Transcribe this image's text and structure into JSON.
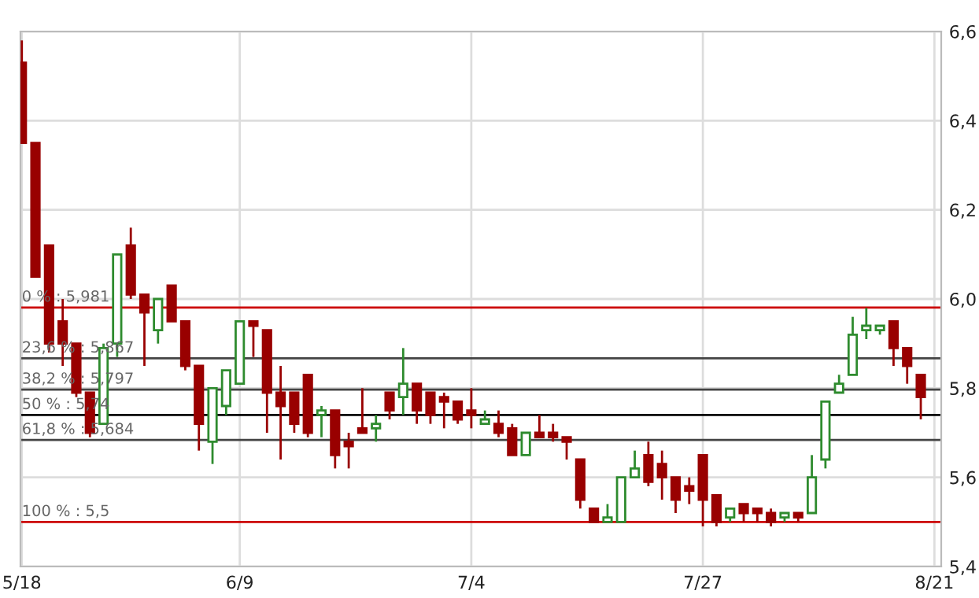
{
  "chart_data": {
    "type": "candlestick",
    "categories": [
      "5/18",
      null,
      null,
      null,
      null,
      null,
      null,
      null,
      null,
      null,
      null,
      null,
      null,
      null,
      null,
      null,
      "6/9",
      null,
      null,
      null,
      null,
      null,
      null,
      null,
      null,
      null,
      null,
      null,
      null,
      null,
      null,
      null,
      null,
      "7/4",
      null,
      null,
      null,
      null,
      null,
      null,
      null,
      null,
      null,
      null,
      null,
      null,
      null,
      null,
      null,
      null,
      "7/27",
      null,
      null,
      null,
      null,
      null,
      null,
      null,
      null,
      null,
      null,
      null,
      null,
      null,
      null,
      null,
      null,
      "8/21"
    ],
    "ohlc": [
      [
        6.53,
        6.58,
        6.35,
        6.35
      ],
      [
        6.35,
        6.35,
        6.05,
        6.05
      ],
      [
        6.12,
        6.12,
        5.88,
        5.9
      ],
      [
        5.95,
        6.0,
        5.85,
        5.9
      ],
      [
        5.9,
        5.9,
        5.78,
        5.79
      ],
      [
        5.79,
        5.79,
        5.69,
        5.7
      ],
      [
        5.72,
        5.9,
        5.72,
        5.89
      ],
      [
        5.9,
        6.1,
        5.87,
        6.1
      ],
      [
        6.12,
        6.16,
        6.0,
        6.01
      ],
      [
        6.01,
        6.01,
        5.85,
        5.97
      ],
      [
        5.93,
        6.0,
        5.9,
        6.0
      ],
      [
        6.03,
        6.03,
        5.95,
        5.95
      ],
      [
        5.95,
        5.95,
        5.84,
        5.85
      ],
      [
        5.85,
        5.85,
        5.66,
        5.72
      ],
      [
        5.68,
        5.8,
        5.63,
        5.8
      ],
      [
        5.76,
        5.84,
        5.74,
        5.84
      ],
      [
        5.81,
        5.95,
        5.81,
        5.95
      ],
      [
        5.95,
        5.95,
        5.87,
        5.94
      ],
      [
        5.93,
        5.93,
        5.7,
        5.79
      ],
      [
        5.79,
        5.85,
        5.64,
        5.76
      ],
      [
        5.79,
        5.79,
        5.7,
        5.72
      ],
      [
        5.83,
        5.83,
        5.69,
        5.7
      ],
      [
        5.74,
        5.76,
        5.69,
        5.75
      ],
      [
        5.75,
        5.75,
        5.62,
        5.65
      ],
      [
        5.68,
        5.7,
        5.62,
        5.67
      ],
      [
        5.71,
        5.8,
        5.7,
        5.7
      ],
      [
        5.71,
        5.74,
        5.68,
        5.72
      ],
      [
        5.79,
        5.79,
        5.73,
        5.75
      ],
      [
        5.78,
        5.89,
        5.74,
        5.81
      ],
      [
        5.81,
        5.81,
        5.72,
        5.75
      ],
      [
        5.79,
        5.79,
        5.72,
        5.74
      ],
      [
        5.78,
        5.79,
        5.71,
        5.77
      ],
      [
        5.77,
        5.77,
        5.72,
        5.73
      ],
      [
        5.75,
        5.8,
        5.71,
        5.74
      ],
      [
        5.72,
        5.75,
        5.72,
        5.73
      ],
      [
        5.72,
        5.75,
        5.69,
        5.7
      ],
      [
        5.71,
        5.72,
        5.65,
        5.65
      ],
      [
        5.65,
        5.7,
        5.65,
        5.7
      ],
      [
        5.7,
        5.74,
        5.69,
        5.69
      ],
      [
        5.7,
        5.72,
        5.68,
        5.69
      ],
      [
        5.69,
        5.69,
        5.64,
        5.68
      ],
      [
        5.64,
        5.64,
        5.53,
        5.55
      ],
      [
        5.53,
        5.53,
        5.5,
        5.5
      ],
      [
        5.5,
        5.54,
        5.5,
        5.51
      ],
      [
        5.5,
        5.6,
        5.5,
        5.6
      ],
      [
        5.6,
        5.66,
        5.6,
        5.62
      ],
      [
        5.65,
        5.68,
        5.58,
        5.59
      ],
      [
        5.63,
        5.66,
        5.55,
        5.6
      ],
      [
        5.6,
        5.6,
        5.52,
        5.55
      ],
      [
        5.58,
        5.6,
        5.54,
        5.57
      ],
      [
        5.65,
        5.65,
        5.49,
        5.55
      ],
      [
        5.56,
        5.56,
        5.49,
        5.5
      ],
      [
        5.51,
        5.53,
        5.5,
        5.53
      ],
      [
        5.54,
        5.54,
        5.5,
        5.52
      ],
      [
        5.53,
        5.53,
        5.5,
        5.52
      ],
      [
        5.52,
        5.53,
        5.49,
        5.5
      ],
      [
        5.51,
        5.52,
        5.5,
        5.52
      ],
      [
        5.52,
        5.52,
        5.5,
        5.51
      ],
      [
        5.52,
        5.65,
        5.52,
        5.6
      ],
      [
        5.64,
        5.77,
        5.62,
        5.77
      ],
      [
        5.79,
        5.83,
        5.79,
        5.81
      ],
      [
        5.83,
        5.96,
        5.83,
        5.92
      ],
      [
        5.93,
        5.98,
        5.91,
        5.94
      ],
      [
        5.93,
        5.94,
        5.92,
        5.94
      ],
      [
        5.95,
        5.95,
        5.85,
        5.89
      ],
      [
        5.89,
        5.89,
        5.81,
        5.85
      ],
      [
        5.83,
        5.83,
        5.73,
        5.78
      ],
      null
    ],
    "ylim": [
      5.4,
      6.6
    ],
    "yticks": [
      {
        "value": 5.4,
        "label": "5,4"
      },
      {
        "value": 5.6,
        "label": "5,6"
      },
      {
        "value": 5.8,
        "label": "5,8"
      },
      {
        "value": 6.0,
        "label": "6,0"
      },
      {
        "value": 6.2,
        "label": "6,2"
      },
      {
        "value": 6.4,
        "label": "6,4"
      },
      {
        "value": 6.6,
        "label": "6,6"
      }
    ],
    "ref_lines": [
      {
        "axis": "y",
        "value": 5.981,
        "label": "0 % : 5,981",
        "color": "#cc0000"
      },
      {
        "axis": "y",
        "value": 5.867,
        "label": "23,6 % : 5,867",
        "color": "#444444"
      },
      {
        "axis": "y",
        "value": 5.797,
        "label": "38,2 % : 5,797",
        "color": "#444444"
      },
      {
        "axis": "y",
        "value": 5.74,
        "label": "50 % : 5,74",
        "color": "#000000"
      },
      {
        "axis": "y",
        "value": 5.684,
        "label": "61,8 % : 5,684",
        "color": "#444444"
      },
      {
        "axis": "y",
        "value": 5.5,
        "label": "100 % : 5,5",
        "color": "#cc0000"
      }
    ],
    "grid": true
  }
}
